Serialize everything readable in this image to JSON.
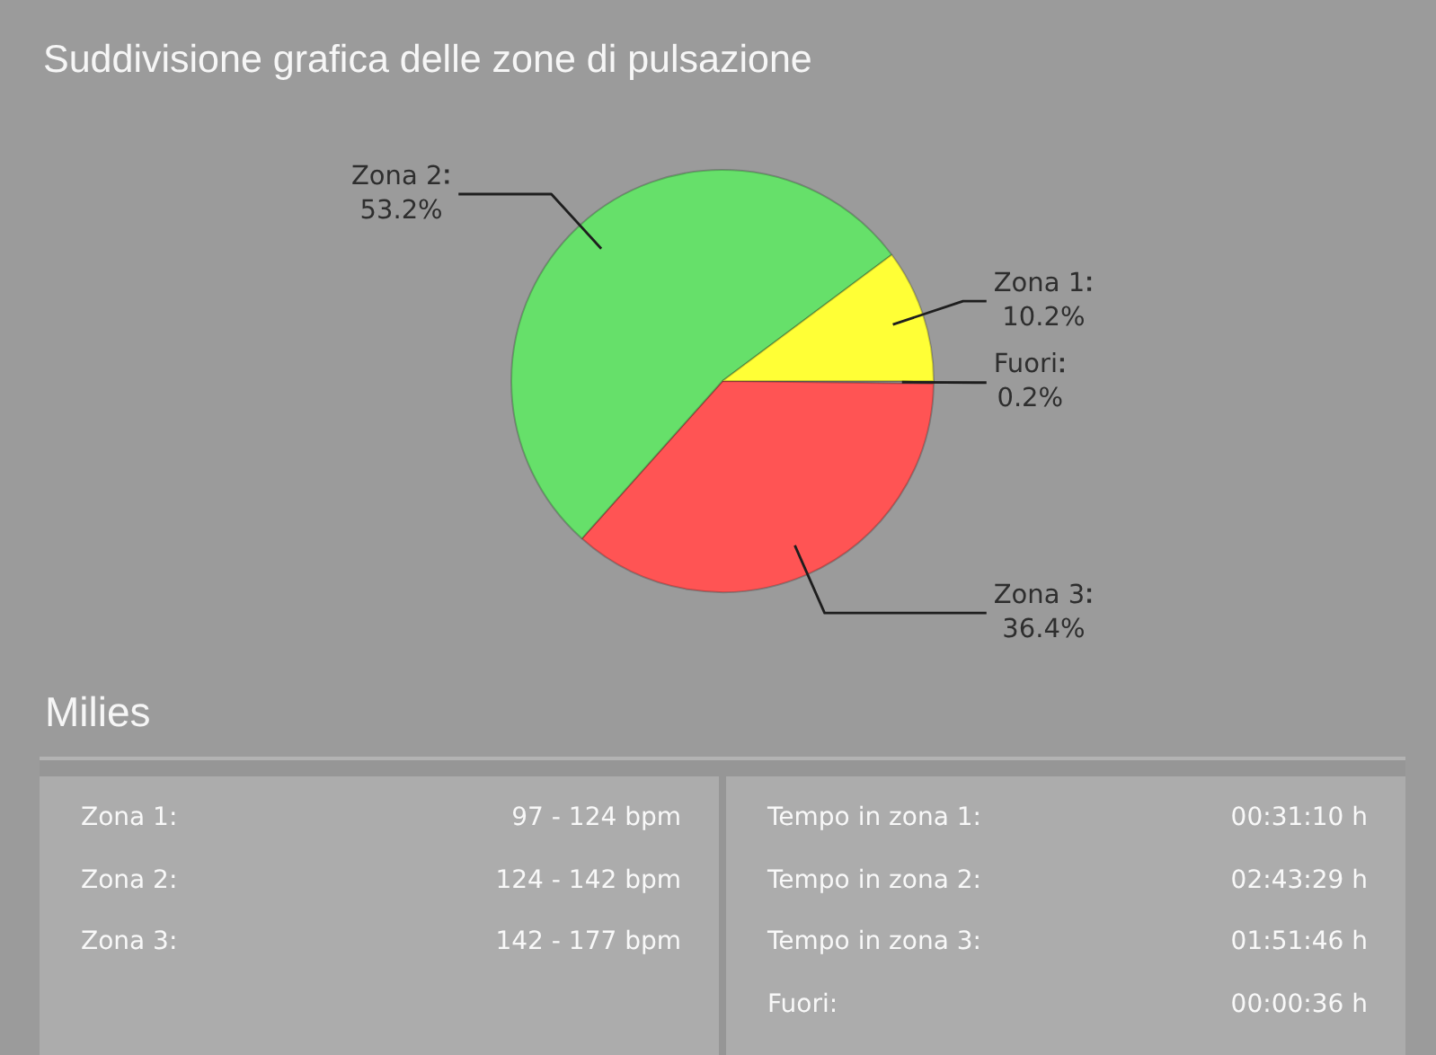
{
  "chart_data": [
    {
      "type": "pie",
      "title": "Suddivisione grafica delle zone di pulsazione",
      "categories": [
        "Fuori",
        "Zona 3",
        "Zona 2",
        "Zona 1"
      ],
      "values": [
        0.2,
        36.4,
        53.2,
        10.2
      ],
      "colors": [
        "#a8a8a8",
        "#ff5454",
        "#66e06a",
        "#ffff36"
      ],
      "value_labels": [
        "0.2%",
        "36.4%",
        "53.2%",
        "10.2%"
      ]
    },
    {
      "type": "other",
      "title": "Milies",
      "annotations": [
        "Zona 1:",
        "97 - 124 bpm",
        "Zona 2:",
        "124 - 142 bpm",
        "Zona 3:",
        "142 - 177 bpm",
        "Tempo in zona 1:",
        "00:31:10 h",
        "Tempo in zona 2:",
        "02:43:29 h",
        "Tempo in zona 3:",
        "01:51:46 h",
        "Fuori:",
        "00:00:36 h"
      ]
    }
  ]
}
